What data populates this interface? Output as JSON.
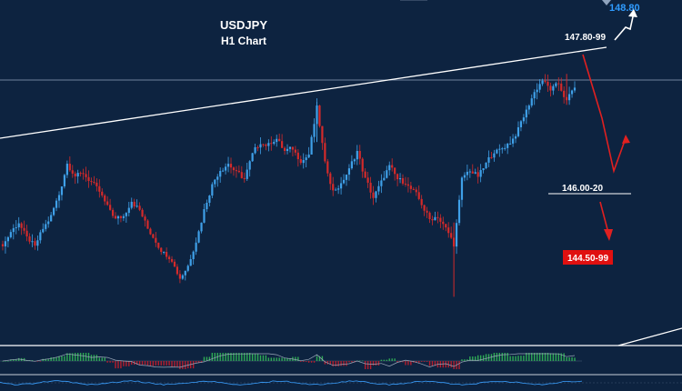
{
  "chart": {
    "title_line1": "USDJPY",
    "title_line2": "H1 Chart"
  },
  "chart_data": {
    "type": "candlestick",
    "symbol": "USDJPY",
    "timeframe": "H1",
    "title": "USDJPY",
    "subtitle": "H1 Chart",
    "ylim": [
      144.2,
      148.9
    ],
    "grid": false,
    "colors": {
      "background": "#0d2340",
      "bull_candle": "#3fa0e8",
      "bear_candle": "#d42a2a",
      "trendline": "#ffffff",
      "resistance_label": "#ffffff",
      "support_label": "#ffffff",
      "target_up": "#2f9bff",
      "target_down_bg": "#e01010",
      "arrow_down": "#e02020",
      "arrow_up": "#ffffff",
      "oscillator_pos": "#2eaa55",
      "oscillator_neg": "#b51e2e",
      "signal_line": "#3aa0ff"
    },
    "levels": [
      {
        "label": "148.80",
        "value": 148.8,
        "style": "target-up"
      },
      {
        "label": "147.80-99",
        "value": 147.9,
        "style": "resistance"
      },
      {
        "label": "146.00-20",
        "value": 146.1,
        "style": "support"
      },
      {
        "label": "144.50-99",
        "value": 144.75,
        "style": "target-down"
      }
    ],
    "close_series": [
      145.25,
      145.45,
      145.6,
      145.35,
      145.2,
      145.5,
      145.7,
      146.05,
      146.55,
      146.35,
      146.4,
      146.25,
      146.1,
      145.85,
      145.65,
      145.7,
      145.95,
      145.8,
      145.5,
      145.3,
      145.1,
      145.0,
      144.7,
      144.9,
      145.3,
      145.8,
      146.2,
      146.45,
      146.55,
      146.4,
      146.3,
      146.7,
      146.9,
      146.85,
      146.95,
      146.75,
      146.8,
      146.6,
      146.7,
      147.45,
      146.55,
      146.1,
      146.2,
      146.45,
      146.75,
      146.3,
      146.0,
      146.25,
      146.5,
      146.3,
      146.25,
      146.1,
      145.9,
      145.65,
      145.7,
      145.5,
      145.25,
      146.3,
      146.45,
      146.35,
      146.55,
      146.75,
      146.8,
      146.9,
      147.1,
      147.4,
      147.7,
      147.9,
      147.75,
      147.85,
      147.55,
      147.8
    ]
  }
}
